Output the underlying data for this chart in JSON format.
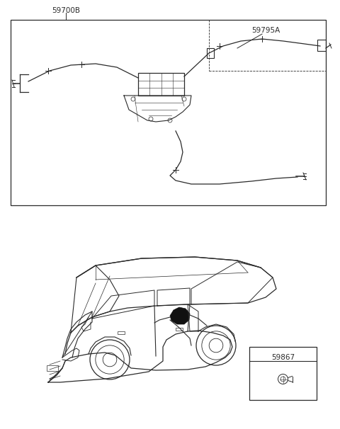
{
  "bg_color": "#ffffff",
  "line_color": "#2a2a2a",
  "label_59700B": "59700B",
  "label_59795A": "59795A",
  "label_59867": "59867",
  "label_fontsize": 7.5,
  "fig_width": 4.8,
  "fig_height": 6.06,
  "dpi": 100
}
